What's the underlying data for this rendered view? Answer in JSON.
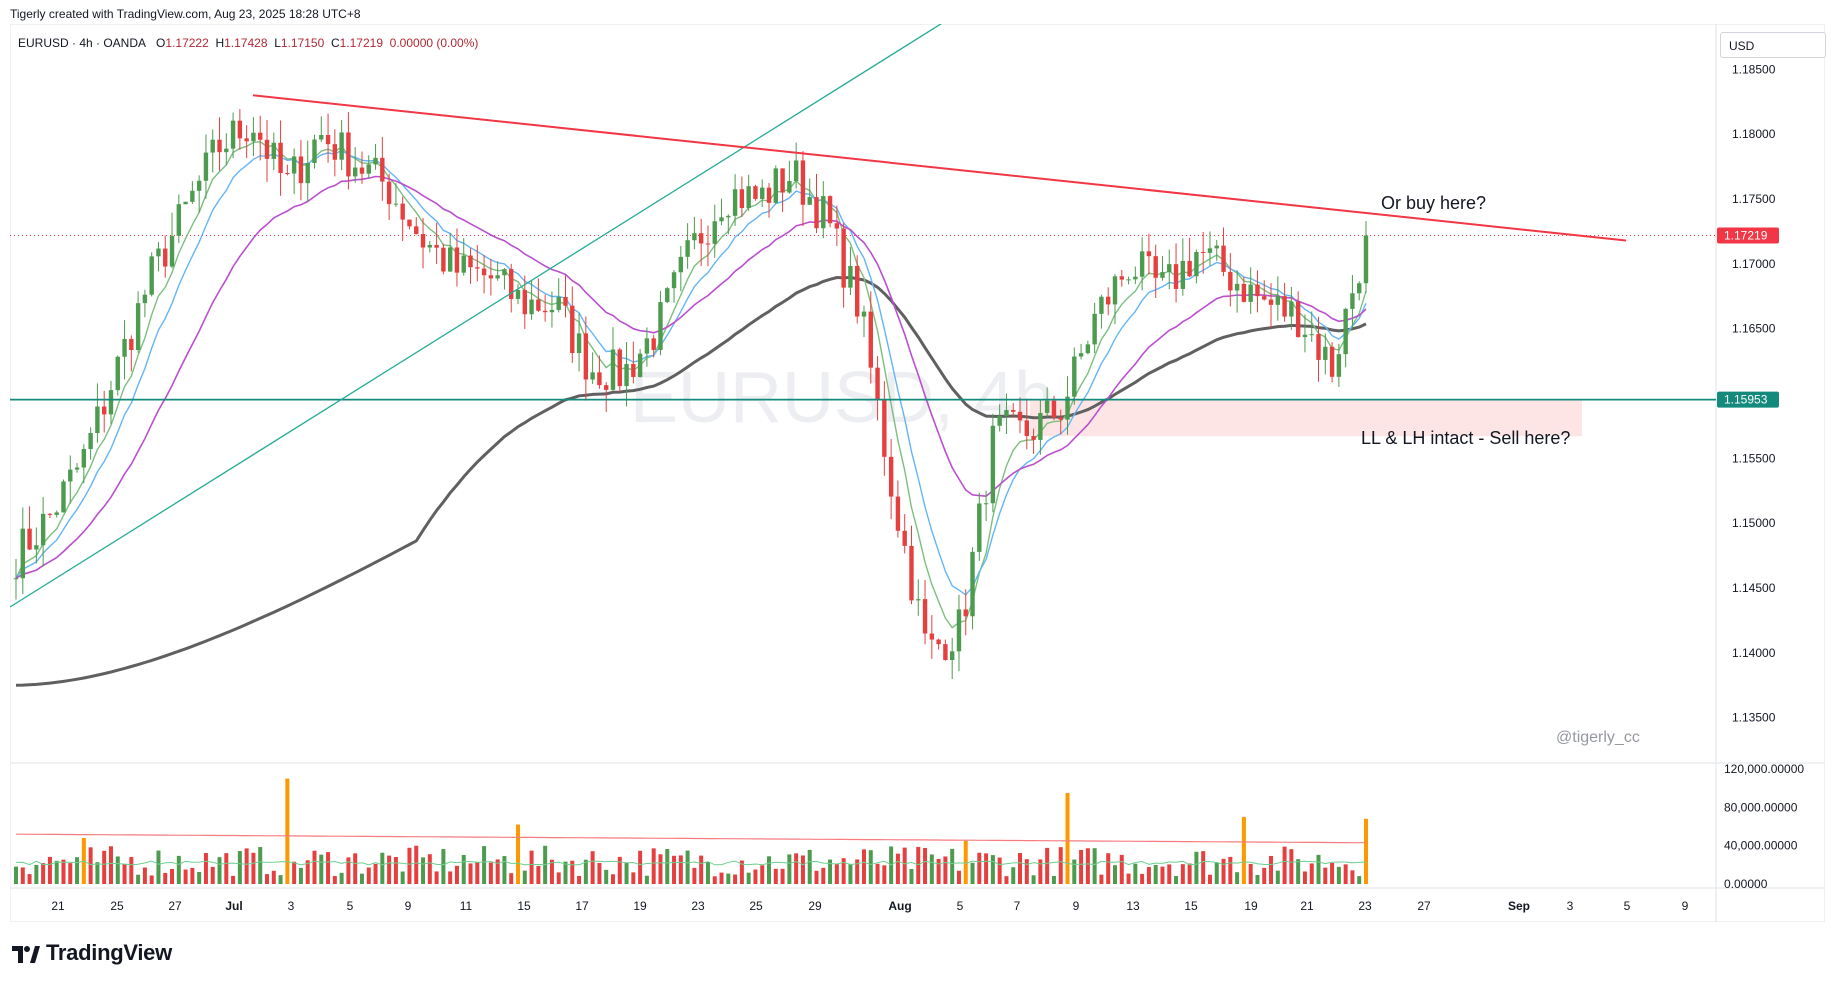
{
  "header": {
    "credit": "Tigerly created with TradingView.com, Aug 23, 2025 18:28 UTC+8"
  },
  "legend": {
    "symbol": "EURUSD · 4h · OANDA",
    "open_label": "O",
    "open": "1.17222",
    "high_label": "H",
    "high": "1.17428",
    "low_label": "L",
    "low": "1.17150",
    "close_label": "C",
    "close": "1.17219",
    "change": "0.00000 (0.00%)"
  },
  "watermark": "EURUSD, 4h",
  "currency_selector": "USD",
  "annotations": {
    "buy": "Or buy here?",
    "sell": "LL & LH intact - Sell here?",
    "author": "@tigerly_cc"
  },
  "price_tags": {
    "last_price": "1.17219",
    "support_level": "1.15953"
  },
  "brand": "TradingView",
  "colors": {
    "up": "#4c9b4f",
    "down": "#e5403f",
    "resistance_line": "#f23645",
    "trend_line": "#22ab94",
    "support_line": "#138a7c",
    "ema_fast": "#7bbf7e",
    "ema_mid": "#64b5f6",
    "ema_slow": "#bb4fcf",
    "ma_200": "#606060",
    "volume_spike": "#ff9800",
    "volume_ma": "#f77c80",
    "volume_ma2": "#6cd08f",
    "zone_fill": "#fde5e6"
  },
  "chart_data": {
    "type": "line",
    "title": "EURUSD, 4h",
    "y_axis_ticks": [
      "1.18500",
      "1.18000",
      "1.17500",
      "1.17000",
      "1.16500",
      "1.15500",
      "1.15000",
      "1.14500",
      "1.14000",
      "1.13500"
    ],
    "ylim": [
      1.1315,
      1.1885
    ],
    "x_axis_ticks": [
      "21",
      "25",
      "27",
      "Jul",
      "3",
      "5",
      "9",
      "11",
      "15",
      "17",
      "19",
      "23",
      "25",
      "29",
      "Aug",
      "5",
      "7",
      "9",
      "13",
      "15",
      "19",
      "21",
      "23",
      "27",
      "Sep",
      "3",
      "5",
      "9"
    ],
    "close_series": [
      1.1475,
      1.1505,
      1.155,
      1.162,
      1.169,
      1.174,
      1.179,
      1.181,
      1.176,
      1.18,
      1.178,
      1.176,
      1.172,
      1.1695,
      1.169,
      1.167,
      1.1668,
      1.162,
      1.1615,
      1.165,
      1.171,
      1.1755,
      1.175,
      1.177,
      1.1735,
      1.1665,
      1.152,
      1.14,
      1.142,
      1.157,
      1.157,
      1.159,
      1.166,
      1.17,
      1.168,
      1.171,
      1.169,
      1.167,
      1.166,
      1.162,
      1.172
    ],
    "price_levels": {
      "last": 1.17219,
      "support": 1.15953,
      "resistance_start": 1.183,
      "resistance_end": 1.1718,
      "zone_top": 1.1595,
      "zone_bottom": 1.1567
    },
    "volume_panel": {
      "y_axis_ticks": [
        "120,000.00000",
        "80,000.00000",
        "40,000.00000",
        "0.00000"
      ],
      "ylim": [
        0,
        120000
      ]
    }
  }
}
